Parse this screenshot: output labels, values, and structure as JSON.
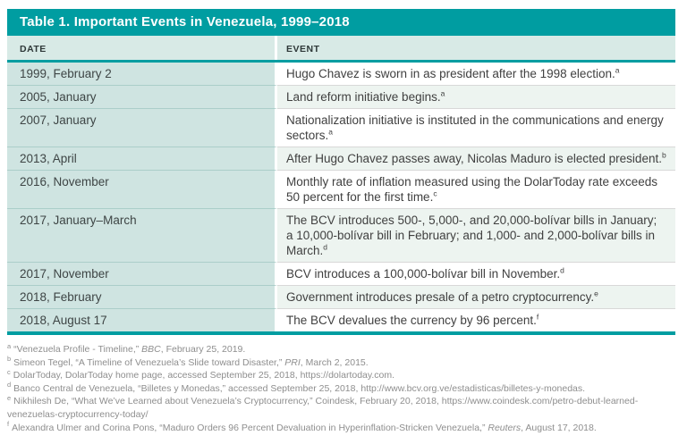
{
  "colors": {
    "teal_accent": "#009DA1",
    "header_row_bg": "#D8EAE6",
    "date_column_bg": "#CFE4E1",
    "event_alt_row_bg": "#EDF4F0"
  },
  "table": {
    "title": "Table 1. Important Events in Venezuela, 1999–2018",
    "columns": [
      "DATE",
      "EVENT"
    ],
    "rows": [
      {
        "date": "1999, February 2",
        "event": "Hugo Chavez is sworn in as president after the 1998 election.",
        "note": "a"
      },
      {
        "date": "2005, January",
        "event": "Land reform initiative begins.",
        "note": "a"
      },
      {
        "date": "2007, January",
        "event": "Nationalization initiative is instituted in the communications and energy sectors.",
        "note": "a"
      },
      {
        "date": "2013, April",
        "event": "After Hugo Chavez passes away, Nicolas Maduro is elected president.",
        "note": "b"
      },
      {
        "date": "2016, November",
        "event": "Monthly rate of inflation measured using the DolarToday rate exceeds 50 percent for the first time.",
        "note": "c"
      },
      {
        "date": "2017, January–March",
        "event": "The BCV introduces 500-, 5,000-, and 20,000-bolívar bills in January; a 10,000-bolívar bill in February; and 1,000- and 2,000-bolívar bills in March.",
        "note": "d"
      },
      {
        "date": "2017, November",
        "event": "BCV introduces a 100,000-bolívar bill in November.",
        "note": "d"
      },
      {
        "date": "2018, February",
        "event": "Government introduces presale of a petro cryptocurrency.",
        "note": "e"
      },
      {
        "date": "2018, August 17",
        "event": "The BCV devalues the currency by 96 percent.",
        "note": "f"
      }
    ]
  },
  "footnotes": [
    {
      "marker": "a",
      "segments": [
        {
          "text": "“Venezuela Profile - Timeline,” ",
          "italic": false
        },
        {
          "text": "BBC",
          "italic": true
        },
        {
          "text": ", February 25, 2019.",
          "italic": false
        }
      ]
    },
    {
      "marker": "b",
      "segments": [
        {
          "text": "Simeon Tegel, “A Timeline of Venezuela’s Slide toward Disaster,” ",
          "italic": false
        },
        {
          "text": "PRI",
          "italic": true
        },
        {
          "text": ", March 2, 2015.",
          "italic": false
        }
      ]
    },
    {
      "marker": "c",
      "segments": [
        {
          "text": "DolarToday, DolarToday home page, accessed September 25, 2018, https://dolartoday.com.",
          "italic": false
        }
      ]
    },
    {
      "marker": "d",
      "segments": [
        {
          "text": "Banco Central de Venezuela, “Billetes y Monedas,” accessed September 25, 2018, http://www.bcv.org.ve/estadisticas/billetes-y-monedas.",
          "italic": false
        }
      ]
    },
    {
      "marker": "e",
      "segments": [
        {
          "text": "Nikhilesh De, “What We’ve Learned about Venezuela’s Cryptocurrency,” Coindesk, February 20, 2018, https://www.coindesk.com/petro-debut-learned-venezuelas-cryptocurrency-today/",
          "italic": false
        }
      ]
    },
    {
      "marker": "f",
      "segments": [
        {
          "text": "Alexandra Ulmer and Corina Pons, “Maduro Orders 96 Percent Devaluation in Hyperinflation-Stricken Venezuela,” ",
          "italic": false
        },
        {
          "text": "Reuters",
          "italic": true
        },
        {
          "text": ", August 17, 2018.",
          "italic": false
        }
      ]
    }
  ]
}
